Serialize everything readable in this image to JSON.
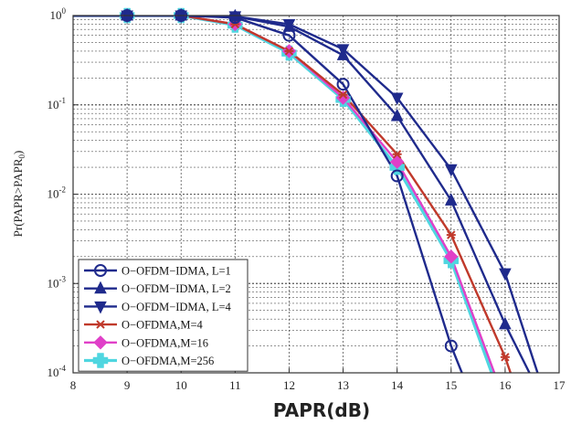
{
  "chart_data": {
    "type": "line",
    "xlabel": "PAPR(dB)",
    "ylabel": "Pr(PAPR>PAPR",
    "ylabel_sub": "0",
    "ylabel_end": ")",
    "xlim": [
      8,
      17
    ],
    "ylim": [
      0.0001,
      1
    ],
    "yscale": "log",
    "grid": true,
    "legend_position": "bottom-left",
    "x_ticks": [
      "8",
      "9",
      "10",
      "11",
      "12",
      "13",
      "14",
      "15",
      "16",
      "17"
    ],
    "y_ticks": [
      {
        "base": "10",
        "exp": "0"
      },
      {
        "base": "10",
        "exp": "-1"
      },
      {
        "base": "10",
        "exp": "-2"
      },
      {
        "base": "10",
        "exp": "-3"
      },
      {
        "base": "10",
        "exp": "-4"
      }
    ],
    "series": [
      {
        "name": "O−OFDM−IDMA, L=1",
        "color": "#1f2a8c",
        "marker": "circle-open",
        "x": [
          8,
          9,
          10,
          11,
          12,
          13,
          14,
          15,
          15.2
        ],
        "y": [
          1,
          1,
          1,
          0.95,
          0.6,
          0.17,
          0.016,
          0.0002,
          0.0001
        ]
      },
      {
        "name": "O−OFDM−IDMA, L=2",
        "color": "#1f2a8c",
        "marker": "triangle-up",
        "x": [
          8,
          9,
          10,
          11,
          12,
          13,
          14,
          15,
          16,
          16.45
        ],
        "y": [
          1,
          1,
          1,
          0.98,
          0.75,
          0.36,
          0.075,
          0.0085,
          0.00035,
          0.0001
        ]
      },
      {
        "name": "O−OFDM−IDMA, L=4",
        "color": "#1f2a8c",
        "marker": "triangle-down",
        "x": [
          8,
          9,
          10,
          11,
          12,
          13,
          14,
          15,
          16,
          16.6
        ],
        "y": [
          1,
          1,
          1,
          0.98,
          0.8,
          0.42,
          0.12,
          0.019,
          0.0013,
          0.0001
        ]
      },
      {
        "name": "O−OFDMA,M=4",
        "color": "#c0392b",
        "marker": "star",
        "x": [
          8,
          9,
          10,
          11,
          12,
          13,
          14,
          15,
          16,
          16.1
        ],
        "y": [
          1,
          1,
          1,
          0.8,
          0.4,
          0.13,
          0.028,
          0.0035,
          0.00015,
          0.0001
        ]
      },
      {
        "name": "O−OFDMA,M=16",
        "color": "#e040c8",
        "marker": "diamond",
        "x": [
          8,
          9,
          10,
          11,
          12,
          13,
          14,
          15,
          15.8
        ],
        "y": [
          1,
          1,
          1,
          0.8,
          0.4,
          0.12,
          0.023,
          0.002,
          0.0001
        ]
      },
      {
        "name": "O−OFDMA,M=256",
        "color": "#4fd6e0",
        "marker": "cross",
        "x": [
          8,
          9,
          10,
          11,
          12,
          13,
          14,
          15,
          15.75
        ],
        "y": [
          1,
          1,
          1,
          0.78,
          0.38,
          0.115,
          0.02,
          0.0018,
          0.0001
        ]
      }
    ]
  }
}
